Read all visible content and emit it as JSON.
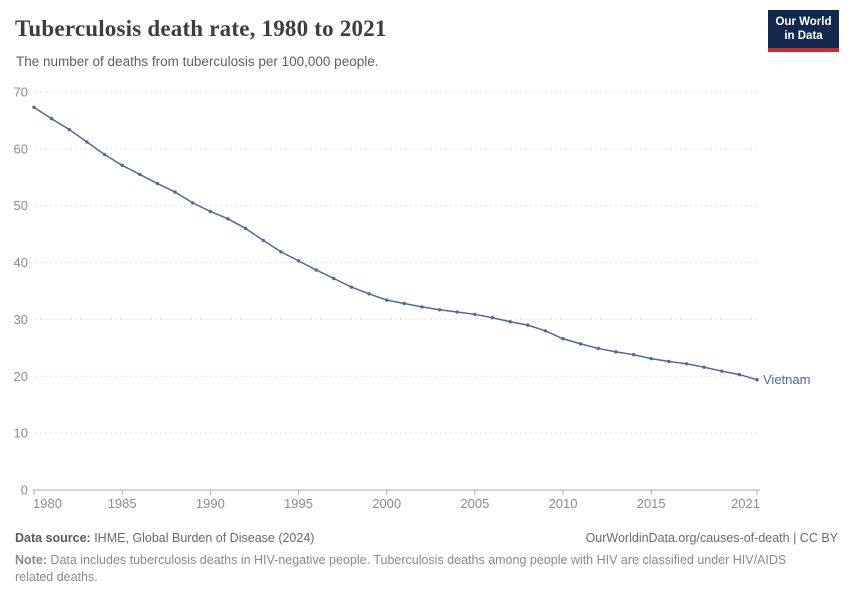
{
  "header": {
    "title": "Tuberculosis death rate, 1980 to 2021",
    "subtitle": "The number of deaths from tuberculosis per 100,000 people.",
    "logo_line1": "Our World",
    "logo_line2": "in Data"
  },
  "chart_data": {
    "type": "line",
    "title": "Tuberculosis death rate, 1980 to 2021",
    "subtitle": "The number of deaths from tuberculosis per 100,000 people.",
    "xlabel": "",
    "ylabel": "",
    "xlim": [
      1980,
      2021
    ],
    "ylim": [
      0,
      70
    ],
    "xticks": [
      1980,
      1985,
      1990,
      1995,
      2000,
      2005,
      2010,
      2015,
      2021
    ],
    "yticks": [
      0,
      10,
      20,
      30,
      40,
      50,
      60,
      70
    ],
    "grid": "horizontal-dashed",
    "legend_position": "line-end-label",
    "series": [
      {
        "name": "Vietnam",
        "color": "#4C6A9C",
        "x": [
          1980,
          1981,
          1982,
          1983,
          1984,
          1985,
          1986,
          1987,
          1988,
          1989,
          1990,
          1991,
          1992,
          1993,
          1994,
          1995,
          1996,
          1997,
          1998,
          1999,
          2000,
          2001,
          2002,
          2003,
          2004,
          2005,
          2006,
          2007,
          2008,
          2009,
          2010,
          2011,
          2012,
          2013,
          2014,
          2015,
          2016,
          2017,
          2018,
          2019,
          2020,
          2021
        ],
        "values": [
          67.3,
          65.3,
          63.4,
          61.2,
          59.0,
          57.1,
          55.5,
          53.9,
          52.4,
          50.5,
          49.0,
          47.7,
          46.0,
          43.9,
          41.9,
          40.3,
          38.7,
          37.2,
          35.7,
          34.5,
          33.4,
          32.8,
          32.2,
          31.7,
          31.3,
          30.9,
          30.3,
          29.6,
          29.0,
          28.0,
          26.6,
          25.7,
          24.9,
          24.3,
          23.8,
          23.1,
          22.6,
          22.2,
          21.6,
          20.9,
          20.3,
          19.4
        ]
      }
    ],
    "end_label": "Vietnam"
  },
  "colors": {
    "line": "#4C6A9C",
    "gridline": "#dedede",
    "axis": "#ababab",
    "tick_label": "#8c8c8c",
    "logo_bg": "#12294d",
    "logo_bar": "#cc2a24"
  },
  "footer": {
    "datasource_label": "Data source:",
    "datasource_value": " IHME, Global Burden of Disease (2024)",
    "attribution": "OurWorldinData.org/causes-of-death | CC BY",
    "note_label": "Note:",
    "note_value": " Data includes tuberculosis deaths in HIV-negative people. Tuberculosis deaths among people with HIV are classified under HIV/AIDS related deaths."
  }
}
